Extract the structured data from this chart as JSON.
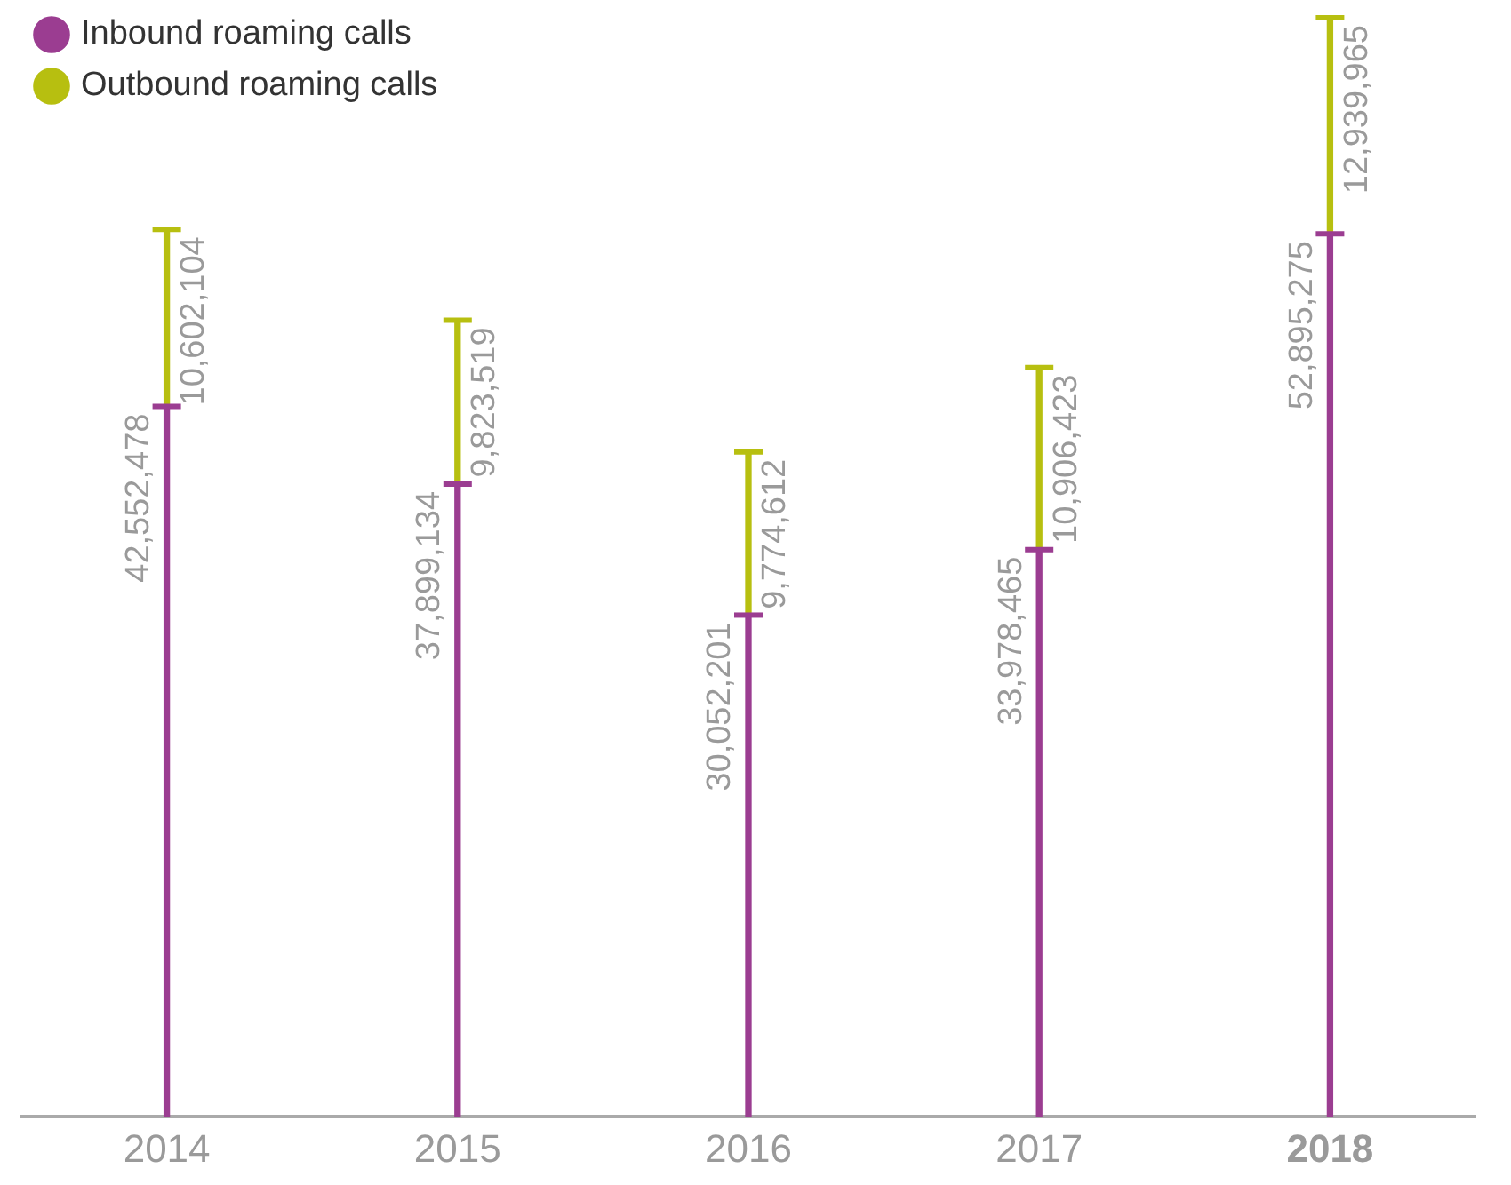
{
  "chart_data": {
    "type": "bar",
    "stacked": true,
    "categories": [
      "2014",
      "2015",
      "2016",
      "2017",
      "2018"
    ],
    "series": [
      {
        "name": "Inbound roaming calls",
        "color": "#9b3d91",
        "values": [
          42552478,
          37899134,
          30052201,
          33978465,
          52895275
        ],
        "value_labels": [
          "42,552,478",
          "37,899,134",
          "30,052,201",
          "33,978,465",
          "52,895,275"
        ]
      },
      {
        "name": "Outbound roaming calls",
        "color": "#b7bf10",
        "values": [
          10602104,
          9823519,
          9774612,
          10906423,
          12939965
        ],
        "value_labels": [
          "10,602,104",
          "9,823,519",
          "9,774,612",
          "10,906,423",
          "12,939,965"
        ]
      }
    ],
    "legend": "top left",
    "grid": false
  }
}
